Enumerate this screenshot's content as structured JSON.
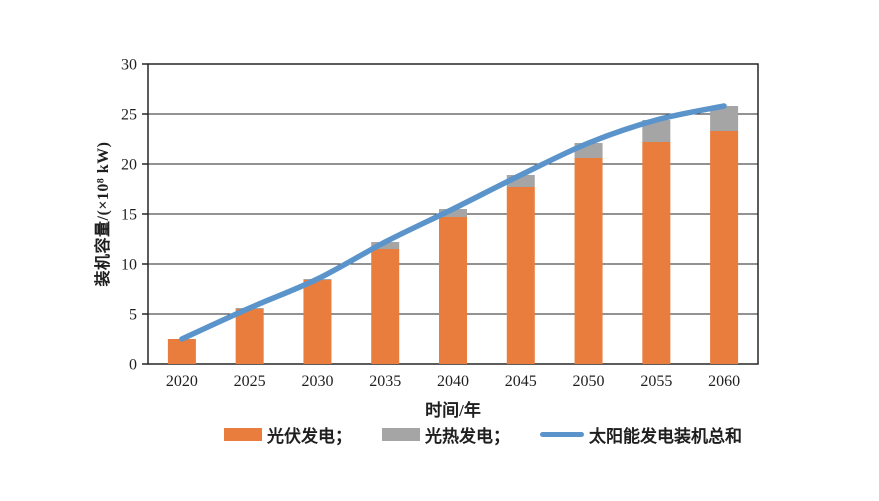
{
  "chart_data": {
    "type": "bar",
    "subtype": "stacked-bars-with-total-line",
    "title": "",
    "xlabel": "时间/年",
    "ylabel": "装机容量/(×10⁸ kW)",
    "categories": [
      "2020",
      "2025",
      "2030",
      "2035",
      "2040",
      "2045",
      "2050",
      "2055",
      "2060"
    ],
    "ylim": [
      0,
      30
    ],
    "yticks": [
      0,
      5,
      10,
      15,
      20,
      25,
      30
    ],
    "grid": "horizontal",
    "legend_position": "bottom",
    "series": [
      {
        "key": "pv-power",
        "name": "光伏发电",
        "type": "bar",
        "stack": "solar",
        "color": "#E87D3E",
        "values": [
          2.5,
          5.5,
          8.4,
          11.5,
          14.7,
          17.7,
          20.6,
          22.2,
          23.3
        ]
      },
      {
        "key": "csp-power",
        "name": "光热发电",
        "type": "bar",
        "stack": "solar",
        "color": "#A5A5A5",
        "values": [
          0.0,
          0.1,
          0.1,
          0.7,
          0.8,
          1.2,
          1.5,
          2.2,
          2.5
        ]
      },
      {
        "key": "solar-total",
        "name": "太阳能发电装机总和",
        "type": "line",
        "color": "#5B94CB",
        "values": [
          2.5,
          5.6,
          8.5,
          12.2,
          15.5,
          18.9,
          22.1,
          24.4,
          25.8
        ]
      }
    ]
  },
  "legend": {
    "items": [
      {
        "label": "光伏发电；",
        "swatch": "rect",
        "color": "#E87D3E"
      },
      {
        "label": "光热发电；",
        "swatch": "rect",
        "color": "#A5A5A5"
      },
      {
        "label": "太阳能发电装机总和",
        "swatch": "line",
        "color": "#5B94CB"
      }
    ]
  },
  "colors": {
    "grid": "#262626",
    "text": "#1f1f1f",
    "background": "#ffffff"
  }
}
